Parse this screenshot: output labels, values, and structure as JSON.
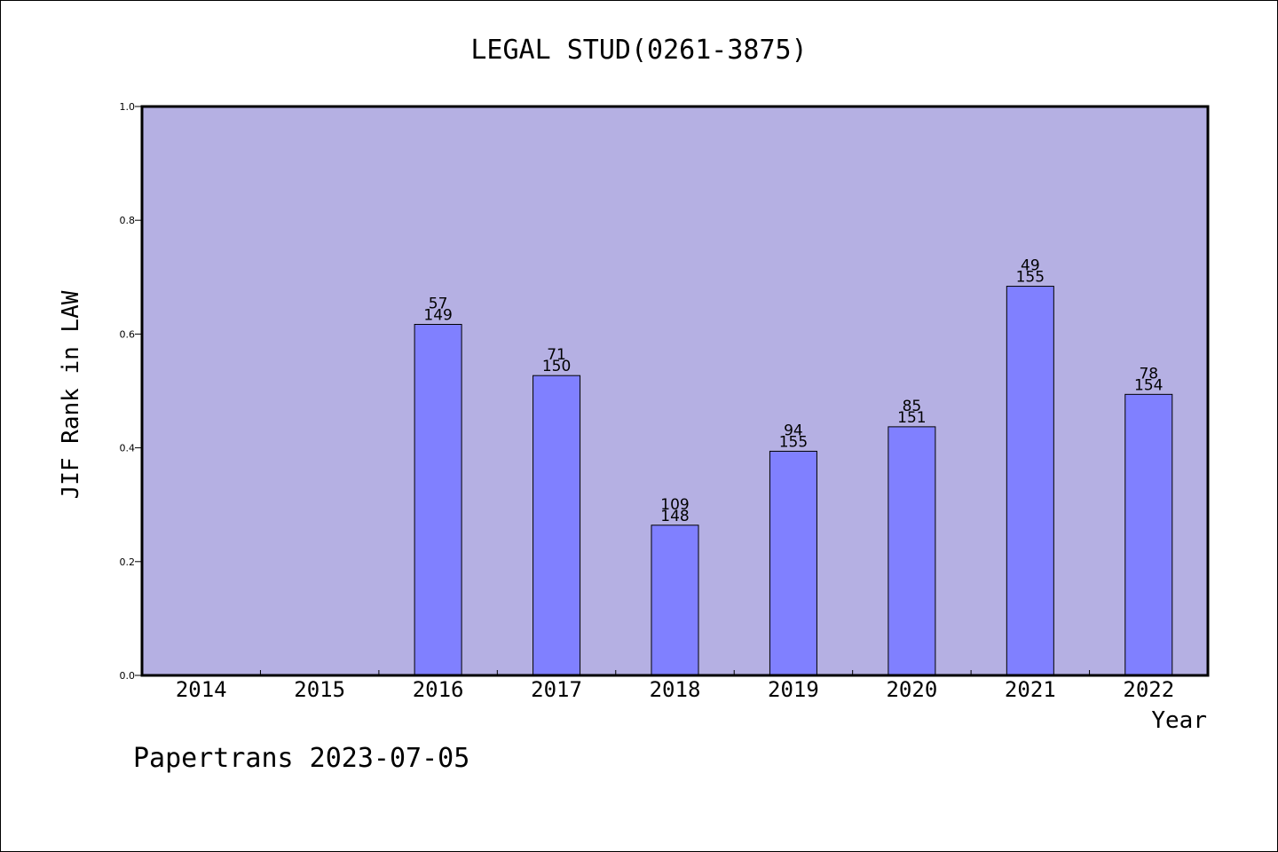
{
  "chart_data": {
    "type": "bar",
    "title": "LEGAL STUD(0261-3875)",
    "xlabel": "Year",
    "ylabel": "JIF Rank in LAW",
    "ylim": [
      0,
      1.0
    ],
    "yticks": [
      "0.0",
      "0.2",
      "0.4",
      "0.6",
      "0.8",
      "1.0"
    ],
    "categories": [
      "2014",
      "2015",
      "2016",
      "2017",
      "2018",
      "2019",
      "2020",
      "2021",
      "2022"
    ],
    "values": [
      null,
      null,
      0.617,
      0.527,
      0.264,
      0.394,
      0.437,
      0.684,
      0.494
    ],
    "ranks": [
      null,
      null,
      "57",
      "71",
      "109",
      "94",
      "85",
      "49",
      "78"
    ],
    "totals": [
      null,
      null,
      "149",
      "150",
      "148",
      "155",
      "151",
      "155",
      "154"
    ],
    "grid": false,
    "colors": {
      "plot_background": "#b5b0e3",
      "bar_fill": "#8080ff",
      "bar_edge": "#000000"
    }
  },
  "footer": "Papertrans 2023-07-05"
}
